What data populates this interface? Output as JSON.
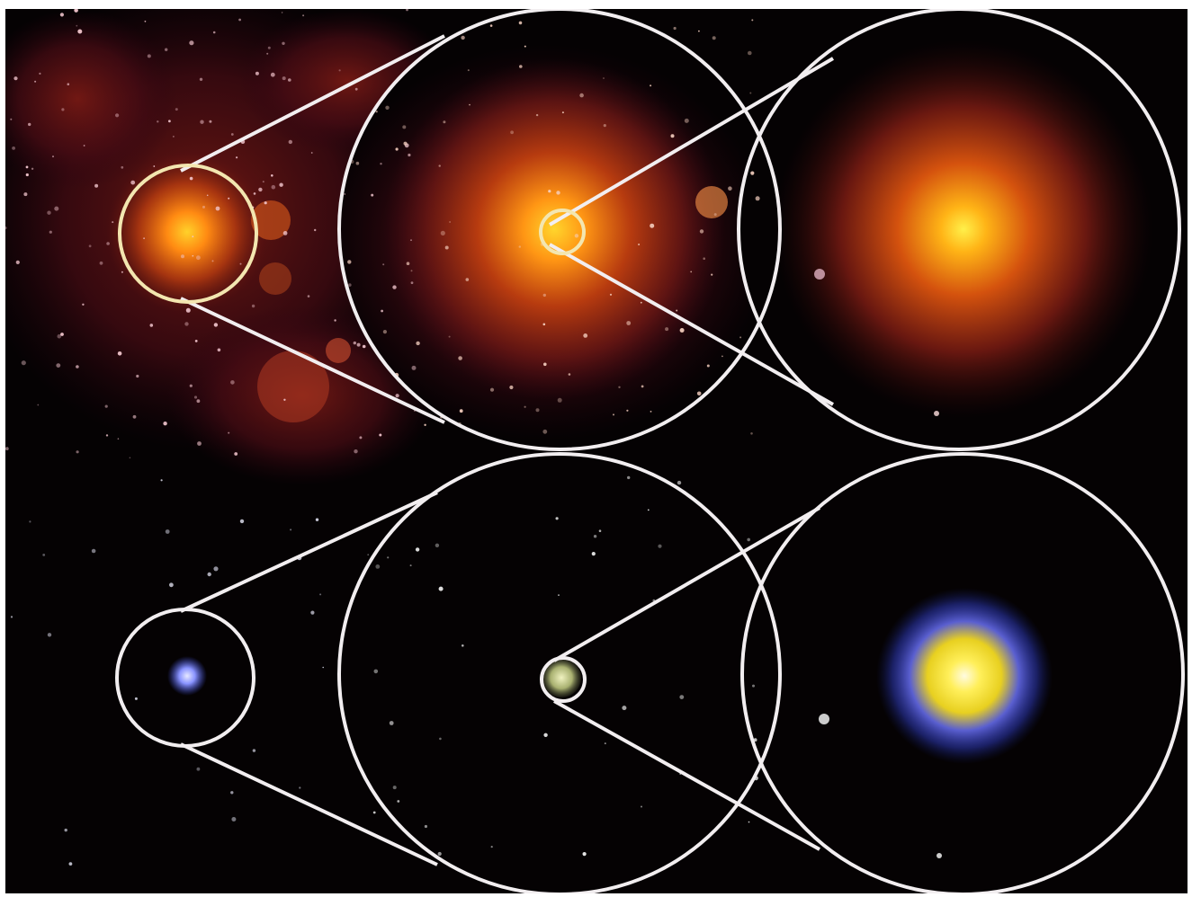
{
  "image": {
    "description_free": true,
    "palette": {
      "background": "#050203",
      "outline": "#f2eef0",
      "nebula_dark": "#3a0812",
      "nebula_mid": "#7a1a14",
      "nebula_warm": "#c8400f",
      "core_orange": "#ff9a10",
      "core_yellow": "#ffe03a",
      "halo_blue": "#3b4bd8",
      "halo_blue_light": "#9aa6ff",
      "star_white": "#fff6f0"
    },
    "rows": [
      {
        "id": "top",
        "panels": [
          "wide-field",
          "zoom-1",
          "zoom-2"
        ],
        "dominant_colors": [
          "nebula_mid",
          "nebula_warm",
          "core_orange",
          "core_yellow"
        ]
      },
      {
        "id": "bottom",
        "panels": [
          "wide-field",
          "zoom-1",
          "zoom-2"
        ],
        "dominant_colors": [
          "halo_blue",
          "core_yellow",
          "star_white"
        ]
      }
    ]
  }
}
